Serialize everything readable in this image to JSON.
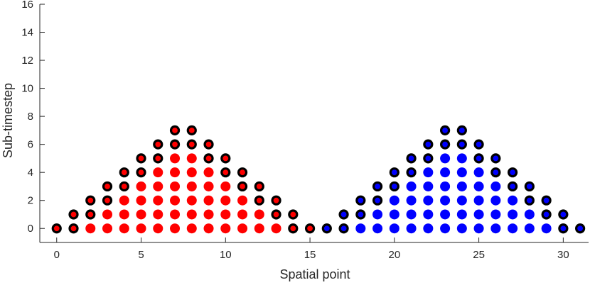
{
  "chart_data": {
    "type": "scatter",
    "title": "",
    "xlabel": "Spatial point",
    "ylabel": "Sub-timestep",
    "xlim": [
      -1,
      31.5
    ],
    "ylim": [
      -1,
      16
    ],
    "xticks": [
      0,
      5,
      10,
      15,
      20,
      25,
      30
    ],
    "yticks": [
      0,
      2,
      4,
      6,
      8,
      10,
      12,
      14,
      16
    ],
    "grid": false,
    "colors": {
      "red": "#ff0000",
      "blue": "#0000ff",
      "outline": "#000000",
      "axis": "#262626"
    },
    "series": [
      {
        "color": "red",
        "columns": [
          {
            "x": 0,
            "filled_max": -1,
            "outlined": [
              0
            ]
          },
          {
            "x": 1,
            "filled_max": -1,
            "outlined": [
              0,
              1
            ]
          },
          {
            "x": 2,
            "filled_max": 0,
            "outlined": [
              1,
              2
            ]
          },
          {
            "x": 3,
            "filled_max": 1,
            "outlined": [
              2,
              3
            ]
          },
          {
            "x": 4,
            "filled_max": 2,
            "outlined": [
              3,
              4
            ]
          },
          {
            "x": 5,
            "filled_max": 3,
            "outlined": [
              4,
              5
            ]
          },
          {
            "x": 6,
            "filled_max": 4,
            "outlined": [
              5,
              6
            ]
          },
          {
            "x": 7,
            "filled_max": 5,
            "outlined": [
              6,
              7
            ]
          },
          {
            "x": 8,
            "filled_max": 5,
            "outlined": [
              6,
              7
            ]
          },
          {
            "x": 9,
            "filled_max": 4,
            "outlined": [
              5,
              6
            ]
          },
          {
            "x": 10,
            "filled_max": 3,
            "outlined": [
              4,
              5
            ]
          },
          {
            "x": 11,
            "filled_max": 2,
            "outlined": [
              3,
              4
            ]
          },
          {
            "x": 12,
            "filled_max": 1,
            "outlined": [
              2,
              3
            ]
          },
          {
            "x": 13,
            "filled_max": 0,
            "outlined": [
              1,
              2
            ]
          },
          {
            "x": 14,
            "filled_max": -1,
            "outlined": [
              0,
              1
            ]
          },
          {
            "x": 15,
            "filled_max": -1,
            "outlined": [
              0
            ]
          }
        ]
      },
      {
        "color": "blue",
        "columns": [
          {
            "x": 16,
            "filled_max": -1,
            "outlined": [
              0
            ]
          },
          {
            "x": 17,
            "filled_max": -1,
            "outlined": [
              0,
              1
            ]
          },
          {
            "x": 18,
            "filled_max": 0,
            "outlined": [
              1,
              2
            ]
          },
          {
            "x": 19,
            "filled_max": 1,
            "outlined": [
              2,
              3
            ]
          },
          {
            "x": 20,
            "filled_max": 2,
            "outlined": [
              3,
              4
            ]
          },
          {
            "x": 21,
            "filled_max": 3,
            "outlined": [
              4,
              5
            ]
          },
          {
            "x": 22,
            "filled_max": 4,
            "outlined": [
              5,
              6
            ]
          },
          {
            "x": 23,
            "filled_max": 5,
            "outlined": [
              6,
              7
            ]
          },
          {
            "x": 24,
            "filled_max": 5,
            "outlined": [
              6,
              7
            ]
          },
          {
            "x": 25,
            "filled_max": 4,
            "outlined": [
              5,
              6
            ]
          },
          {
            "x": 26,
            "filled_max": 3,
            "outlined": [
              4,
              5
            ]
          },
          {
            "x": 27,
            "filled_max": 2,
            "outlined": [
              3,
              4
            ]
          },
          {
            "x": 28,
            "filled_max": 1,
            "outlined": [
              2,
              3
            ]
          },
          {
            "x": 29,
            "filled_max": 0,
            "outlined": [
              1,
              2
            ]
          },
          {
            "x": 30,
            "filled_max": -1,
            "outlined": [
              0,
              1
            ]
          },
          {
            "x": 31,
            "filled_max": -1,
            "outlined": [
              0
            ]
          }
        ]
      }
    ]
  }
}
